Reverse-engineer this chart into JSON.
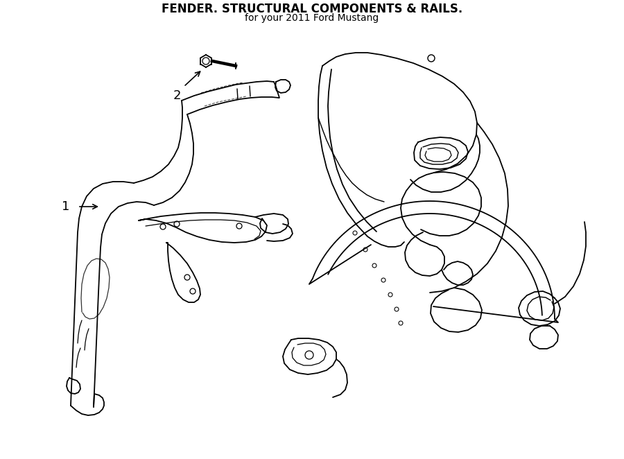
{
  "title": "FENDER. STRUCTURAL COMPONENTS & RAILS.",
  "subtitle": "for your 2011 Ford Mustang",
  "bg_color": "#ffffff",
  "line_color": "#000000",
  "line_width": 1.3,
  "fig_width": 9.0,
  "fig_height": 6.62,
  "dpi": 100
}
